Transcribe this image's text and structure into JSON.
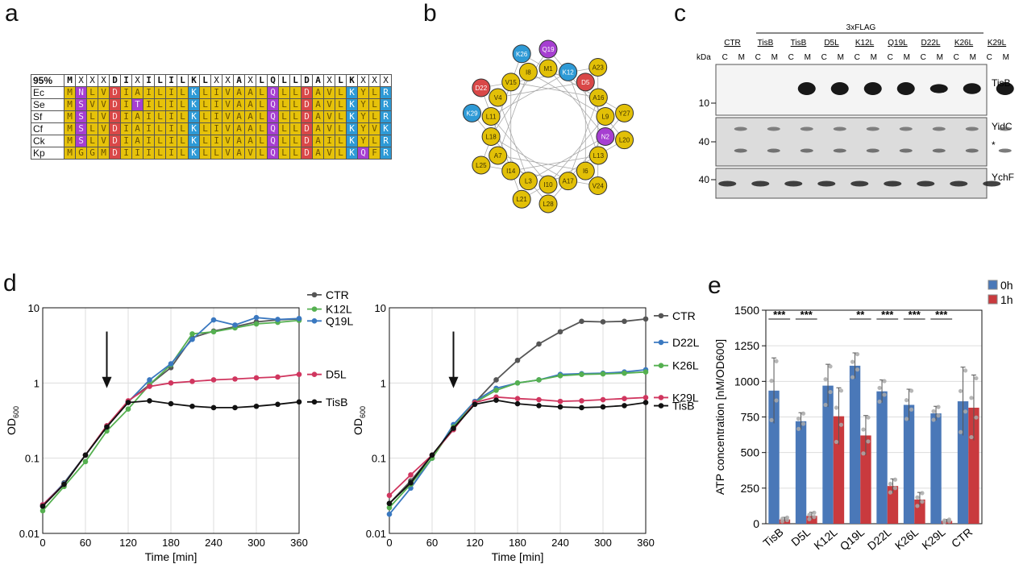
{
  "panels": {
    "a": "a",
    "b": "b",
    "c": "c",
    "d": "d",
    "e": "e"
  },
  "alignment": {
    "header_label": "95%",
    "consensus": [
      "M",
      "X",
      "X",
      "X",
      "D",
      "I",
      "X",
      "I",
      "L",
      "I",
      "L",
      "K",
      "L",
      "X",
      "X",
      "A",
      "X",
      "L",
      "Q",
      "L",
      "L",
      "D",
      "A",
      "X",
      "L",
      "K",
      "X",
      "X",
      "X"
    ],
    "rows": [
      {
        "name": "Ec",
        "seq": "MNLVDIAILILKLIVAALQLLDAVLKYLR"
      },
      {
        "name": "Se",
        "seq": "MSVVDITILILKLIVAALQLLDAVLKYLR"
      },
      {
        "name": "Sf",
        "seq": "MSLVDIAILILKLIVAALQLLDAVLKYLR"
      },
      {
        "name": "Cf",
        "seq": "MSLVDIAILILKLIVAALQLLDAVLKYVK"
      },
      {
        "name": "Ck",
        "seq": "MSLVDIAILILKLIVAALQLLDAILKYLR"
      },
      {
        "name": "Kp",
        "seq": "MGGMDIIILILKLLVAVLQLLDAVLKQFR"
      }
    ],
    "colors": {
      "hydrophobic": "#e6c20a",
      "acidic": "#d94848",
      "basic": "#2e9ad6",
      "polar": "#a63fd1",
      "white": "#ffffff"
    }
  },
  "helix": {
    "residues": [
      {
        "label": "Q19",
        "cls": "polar"
      },
      {
        "label": "K26",
        "cls": "basic"
      },
      {
        "label": "M1",
        "cls": "hyd"
      },
      {
        "label": "I8",
        "cls": "hyd"
      },
      {
        "label": "K12",
        "cls": "basic"
      },
      {
        "label": "A23",
        "cls": "hyd"
      },
      {
        "label": "D5",
        "cls": "acid"
      },
      {
        "label": "V15",
        "cls": "hyd"
      },
      {
        "label": "D22",
        "cls": "acid"
      },
      {
        "label": "V4",
        "cls": "hyd"
      },
      {
        "label": "A16",
        "cls": "hyd"
      },
      {
        "label": "L9",
        "cls": "hyd"
      },
      {
        "label": "Y27",
        "cls": "hyd"
      },
      {
        "label": "K29",
        "cls": "basic"
      },
      {
        "label": "L11",
        "cls": "hyd"
      },
      {
        "label": "N2",
        "cls": "polar"
      },
      {
        "label": "L20",
        "cls": "hyd"
      },
      {
        "label": "L18",
        "cls": "hyd"
      },
      {
        "label": "L13",
        "cls": "hyd"
      },
      {
        "label": "A7",
        "cls": "hyd"
      },
      {
        "label": "L25",
        "cls": "hyd"
      },
      {
        "label": "I14",
        "cls": "hyd"
      },
      {
        "label": "I6",
        "cls": "hyd"
      },
      {
        "label": "L3",
        "cls": "hyd"
      },
      {
        "label": "I10",
        "cls": "hyd"
      },
      {
        "label": "A17",
        "cls": "hyd"
      },
      {
        "label": "V24",
        "cls": "hyd"
      },
      {
        "label": "L21",
        "cls": "hyd"
      },
      {
        "label": "L28",
        "cls": "hyd"
      }
    ]
  },
  "blot": {
    "flag_label": "3xFLAG",
    "kda_label": "kDa",
    "samples": [
      "CTR",
      "TisB",
      "TisB",
      "D5L",
      "K12L",
      "Q19L",
      "D22L",
      "K26L",
      "K29L"
    ],
    "fractions": [
      "C",
      "M"
    ],
    "bands": [
      "TisB",
      "YidC",
      "YchF"
    ],
    "mw": [
      "10",
      "40",
      "40"
    ],
    "asterisk": "*"
  },
  "growth_left": {
    "ylabel": "OD",
    "ylabel_sub": "600",
    "xlabel": "Time [min]",
    "xticks": [
      "0",
      "60",
      "120",
      "180",
      "240",
      "300",
      "360"
    ],
    "yticks": [
      "0.01",
      "0.1",
      "1",
      "10"
    ],
    "series": [
      {
        "name": "CTR",
        "color": "#555555"
      },
      {
        "name": "K12L",
        "color": "#55b050"
      },
      {
        "name": "Q19L",
        "color": "#3a78c0"
      },
      {
        "name": "D5L",
        "color": "#d0365f"
      },
      {
        "name": "TisB",
        "color": "#111111"
      }
    ]
  },
  "growth_right": {
    "ylabel": "OD",
    "ylabel_sub": "600",
    "xlabel": "Time [min]",
    "xticks": [
      "0",
      "60",
      "120",
      "180",
      "240",
      "300",
      "360"
    ],
    "yticks": [
      "0.01",
      "0.1",
      "1",
      "10"
    ],
    "series": [
      {
        "name": "CTR",
        "color": "#555555"
      },
      {
        "name": "D22L",
        "color": "#3a78c0"
      },
      {
        "name": "K26L",
        "color": "#55b050"
      },
      {
        "name": "K29L",
        "color": "#d0365f"
      },
      {
        "name": "TisB",
        "color": "#111111"
      }
    ]
  },
  "chart_data": [
    {
      "type": "line",
      "title": "",
      "xlabel": "Time [min]",
      "ylabel": "OD600",
      "yscale": "log",
      "xlim": [
        0,
        360
      ],
      "ylim": [
        0.01,
        10
      ],
      "x": [
        0,
        30,
        60,
        90,
        120,
        150,
        180,
        210,
        240,
        270,
        300,
        330,
        360
      ],
      "series": [
        {
          "name": "CTR",
          "values": [
            0.023,
            0.047,
            0.11,
            0.27,
            0.57,
            0.95,
            1.6,
            4.0,
            4.9,
            5.6,
            6.5,
            6.9,
            7.1
          ]
        },
        {
          "name": "K12L",
          "values": [
            0.02,
            0.042,
            0.09,
            0.23,
            0.45,
            0.95,
            1.75,
            4.5,
            4.8,
            5.4,
            6.1,
            6.4,
            6.8
          ]
        },
        {
          "name": "Q19L",
          "values": [
            0.024,
            0.046,
            0.11,
            0.26,
            0.56,
            1.1,
            1.8,
            3.8,
            6.9,
            5.9,
            7.4,
            7.0,
            7.2
          ]
        },
        {
          "name": "D5L",
          "values": [
            0.024,
            0.045,
            0.11,
            0.27,
            0.58,
            0.9,
            1.0,
            1.05,
            1.1,
            1.13,
            1.17,
            1.2,
            1.3
          ]
        },
        {
          "name": "TisB",
          "values": [
            0.023,
            0.045,
            0.11,
            0.26,
            0.55,
            0.58,
            0.53,
            0.49,
            0.47,
            0.47,
            0.49,
            0.52,
            0.56
          ]
        }
      ],
      "annotations": [
        "arrow at 90 min"
      ]
    },
    {
      "type": "line",
      "title": "",
      "xlabel": "Time [min]",
      "ylabel": "OD600",
      "yscale": "log",
      "xlim": [
        0,
        360
      ],
      "ylim": [
        0.01,
        10
      ],
      "x": [
        0,
        30,
        60,
        90,
        120,
        150,
        180,
        210,
        240,
        270,
        300,
        330,
        360
      ],
      "series": [
        {
          "name": "CTR",
          "values": [
            0.025,
            0.05,
            0.11,
            0.24,
            0.55,
            1.1,
            2.0,
            3.3,
            4.8,
            6.6,
            6.5,
            6.6,
            7.1
          ]
        },
        {
          "name": "D22L",
          "values": [
            0.018,
            0.04,
            0.1,
            0.28,
            0.57,
            0.85,
            1.0,
            1.1,
            1.3,
            1.33,
            1.35,
            1.4,
            1.5
          ]
        },
        {
          "name": "K26L",
          "values": [
            0.022,
            0.045,
            0.1,
            0.26,
            0.55,
            0.8,
            1.0,
            1.1,
            1.25,
            1.3,
            1.32,
            1.35,
            1.4
          ]
        },
        {
          "name": "K29L",
          "values": [
            0.032,
            0.06,
            0.11,
            0.24,
            0.55,
            0.65,
            0.62,
            0.6,
            0.57,
            0.58,
            0.6,
            0.62,
            0.64
          ]
        },
        {
          "name": "TisB",
          "values": [
            0.025,
            0.047,
            0.11,
            0.25,
            0.52,
            0.59,
            0.53,
            0.5,
            0.48,
            0.47,
            0.48,
            0.5,
            0.55
          ]
        }
      ],
      "annotations": [
        "arrow at 90 min"
      ]
    },
    {
      "type": "bar",
      "title": "",
      "xlabel": "",
      "ylabel": "ATP concentration [nM/OD600]",
      "ylim": [
        0,
        1500
      ],
      "categories": [
        "TisB",
        "D5L",
        "K12L",
        "Q19L",
        "D22L",
        "K26L",
        "K29L",
        "CTR"
      ],
      "series": [
        {
          "name": "0h",
          "values": [
            935,
            720,
            970,
            1110,
            930,
            835,
            775,
            860
          ],
          "errors": [
            230,
            60,
            150,
            90,
            80,
            110,
            50,
            240
          ]
        },
        {
          "name": "1h",
          "values": [
            30,
            55,
            755,
            620,
            265,
            170,
            20,
            815
          ],
          "errors": [
            15,
            25,
            200,
            140,
            50,
            50,
            10,
            230
          ]
        }
      ],
      "significance": [
        "***",
        "***",
        "",
        "**",
        "***",
        "***",
        "***",
        ""
      ],
      "yticks": [
        "0",
        "250",
        "500",
        "750",
        "1000",
        "1250",
        "1500"
      ],
      "legend": {
        "position": "top-right",
        "entries": [
          "0h",
          "1h"
        ]
      },
      "colors": {
        "0h": "#4a78b8",
        "1h": "#c93a3e"
      }
    }
  ]
}
